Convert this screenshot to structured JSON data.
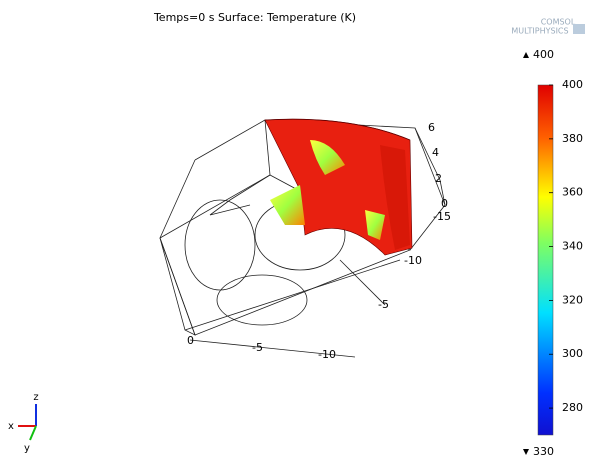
{
  "title": "Temps=0 s   Surface: Temperature (K)",
  "logo": [
    "COMSOL",
    "MULTIPHYSICS"
  ],
  "colorbar": {
    "max_label": "400",
    "min_label": "330",
    "range": [
      270,
      400
    ],
    "ticks": [
      280,
      300,
      320,
      340,
      360,
      380,
      400
    ]
  },
  "axis_ticks": {
    "z": [
      "6",
      "4",
      "2",
      "0"
    ],
    "y": [
      "-15",
      "-10",
      "-5"
    ],
    "x": [
      "0",
      "-5",
      "-10"
    ]
  },
  "triad": [
    "z",
    "x",
    "y"
  ]
}
